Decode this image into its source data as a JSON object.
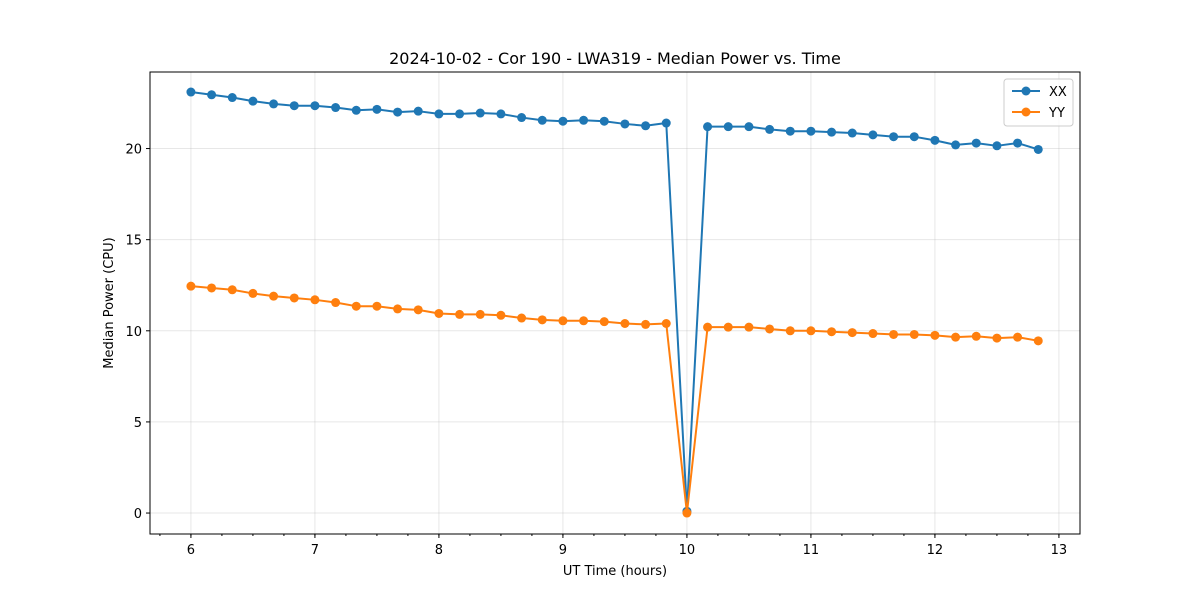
{
  "chart_data": {
    "type": "line",
    "title": "2024-10-02 - Cor 190 - LWA319 - Median Power vs. Time",
    "xlabel": "UT Time (hours)",
    "ylabel": "Median Power (CPU)",
    "xlim": [
      5.67,
      13.17
    ],
    "ylim": [
      -1.15,
      24.2
    ],
    "xticks": [
      6,
      7,
      8,
      9,
      10,
      11,
      12,
      13
    ],
    "yticks": [
      0,
      5,
      10,
      15,
      20
    ],
    "x_minor_step": 0.25,
    "grid": true,
    "legend_position": "top-right",
    "x": [
      6.0,
      6.1667,
      6.3333,
      6.5,
      6.6667,
      6.8333,
      7.0,
      7.1667,
      7.3333,
      7.5,
      7.6667,
      7.8333,
      8.0,
      8.1667,
      8.3333,
      8.5,
      8.6667,
      8.8333,
      9.0,
      9.1667,
      9.3333,
      9.5,
      9.6667,
      9.8333,
      10.0,
      10.1667,
      10.3333,
      10.5,
      10.6667,
      10.8333,
      11.0,
      11.1667,
      11.3333,
      11.5,
      11.6667,
      11.8333,
      12.0,
      12.1667,
      12.3333,
      12.5,
      12.6667,
      12.8333
    ],
    "series": [
      {
        "name": "XX",
        "color": "#1f77b4",
        "values": [
          23.1,
          22.95,
          22.8,
          22.6,
          22.45,
          22.35,
          22.35,
          22.25,
          22.1,
          22.15,
          22.0,
          22.05,
          21.9,
          21.9,
          21.95,
          21.9,
          21.7,
          21.55,
          21.5,
          21.55,
          21.5,
          21.35,
          21.25,
          21.4,
          0.1,
          21.2,
          21.2,
          21.2,
          21.05,
          20.95,
          20.95,
          20.9,
          20.85,
          20.75,
          20.65,
          20.65,
          20.45,
          20.2,
          20.3,
          20.15,
          20.3,
          19.95
        ]
      },
      {
        "name": "YY",
        "color": "#ff7f0e",
        "values": [
          12.45,
          12.35,
          12.25,
          12.05,
          11.9,
          11.8,
          11.7,
          11.55,
          11.35,
          11.35,
          11.2,
          11.15,
          10.95,
          10.9,
          10.9,
          10.85,
          10.7,
          10.6,
          10.55,
          10.55,
          10.5,
          10.4,
          10.35,
          10.4,
          0.0,
          10.2,
          10.2,
          10.2,
          10.1,
          10.0,
          10.0,
          9.95,
          9.9,
          9.85,
          9.8,
          9.8,
          9.75,
          9.65,
          9.7,
          9.6,
          9.65,
          9.45
        ]
      }
    ]
  }
}
